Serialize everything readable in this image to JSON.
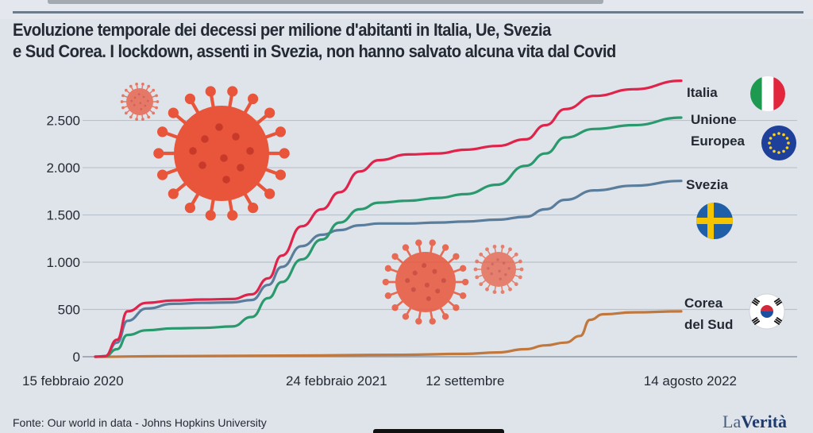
{
  "title_line1": "Evoluzione temporale dei decessi per milione d'abitanti in Italia, Ue, Svezia",
  "title_line2": "e Sud Corea. I lockdown, assenti in Svezia,  non hanno salvato alcuna vita dal Covid",
  "source": "Fonte: Our world in data - Johns Hopkins University",
  "brand": {
    "la": "La",
    "verita": "Verità"
  },
  "icons": [
    "coronavirus-icon",
    "flag-italy-icon",
    "flag-eu-icon",
    "flag-sweden-icon",
    "flag-south-korea-icon"
  ],
  "colors": {
    "italia": "#e0234a",
    "ue": "#2a9a6e",
    "svezia": "#5b7d9c",
    "corea": "#c0783c",
    "virus": "#e8553a",
    "grid": "#b9c1cb"
  },
  "chart_data": {
    "type": "line",
    "title": "Evoluzione temporale dei decessi per milione d'abitanti in Italia, Ue, Svezia e Sud Corea. I lockdown, assenti in Svezia,  non hanno salvato alcuna vita dal Covid",
    "xlabel": "",
    "ylabel": "",
    "ylim": [
      0,
      2900
    ],
    "xlim": [
      "2020-02-15",
      "2022-08-14"
    ],
    "grid": true,
    "legend": "right, at line ends",
    "y_ticks": [
      {
        "value": 0,
        "label": "0"
      },
      {
        "value": 500,
        "label": "500"
      },
      {
        "value": 1000,
        "label": "1.000"
      },
      {
        "value": 1500,
        "label": "1.500"
      },
      {
        "value": 2000,
        "label": "2.000"
      },
      {
        "value": 2500,
        "label": "2.500"
      }
    ],
    "x_ticks": [
      {
        "date": "2020-02-15",
        "label": "15 febbraio  2020"
      },
      {
        "date": "2021-02-24",
        "label": "24 febbraio 2021"
      },
      {
        "date": "2021-09-12",
        "label": "12 settembre"
      },
      {
        "date": "2022-08-14",
        "label": "14 agosto 2022"
      }
    ],
    "series": [
      {
        "name": "Italia",
        "points": [
          [
            "2020-02-15",
            0
          ],
          [
            "2020-03-01",
            5
          ],
          [
            "2020-03-20",
            180
          ],
          [
            "2020-04-05",
            480
          ],
          [
            "2020-05-05",
            570
          ],
          [
            "2020-06-15",
            595
          ],
          [
            "2020-08-01",
            605
          ],
          [
            "2020-09-15",
            610
          ],
          [
            "2020-10-15",
            660
          ],
          [
            "2020-11-10",
            830
          ],
          [
            "2020-12-01",
            1070
          ],
          [
            "2021-01-01",
            1380
          ],
          [
            "2021-02-01",
            1560
          ],
          [
            "2021-03-01",
            1740
          ],
          [
            "2021-04-01",
            1960
          ],
          [
            "2021-05-01",
            2080
          ],
          [
            "2021-06-15",
            2140
          ],
          [
            "2021-08-01",
            2150
          ],
          [
            "2021-09-12",
            2190
          ],
          [
            "2021-11-01",
            2230
          ],
          [
            "2021-12-15",
            2300
          ],
          [
            "2022-01-15",
            2450
          ],
          [
            "2022-02-15",
            2620
          ],
          [
            "2022-04-01",
            2760
          ],
          [
            "2022-06-01",
            2830
          ],
          [
            "2022-08-14",
            2920
          ]
        ]
      },
      {
        "name": "Unione Europea",
        "points": [
          [
            "2020-02-15",
            0
          ],
          [
            "2020-03-01",
            5
          ],
          [
            "2020-03-20",
            80
          ],
          [
            "2020-04-05",
            230
          ],
          [
            "2020-05-05",
            280
          ],
          [
            "2020-06-15",
            300
          ],
          [
            "2020-08-01",
            305
          ],
          [
            "2020-09-15",
            320
          ],
          [
            "2020-10-15",
            420
          ],
          [
            "2020-11-10",
            620
          ],
          [
            "2020-12-01",
            790
          ],
          [
            "2021-01-01",
            1030
          ],
          [
            "2021-02-01",
            1240
          ],
          [
            "2021-03-01",
            1420
          ],
          [
            "2021-04-01",
            1560
          ],
          [
            "2021-05-01",
            1630
          ],
          [
            "2021-06-15",
            1650
          ],
          [
            "2021-08-01",
            1680
          ],
          [
            "2021-09-12",
            1720
          ],
          [
            "2021-11-01",
            1820
          ],
          [
            "2021-12-15",
            2020
          ],
          [
            "2022-01-15",
            2150
          ],
          [
            "2022-02-15",
            2320
          ],
          [
            "2022-04-01",
            2410
          ],
          [
            "2022-06-01",
            2450
          ],
          [
            "2022-08-14",
            2530
          ]
        ]
      },
      {
        "name": "Svezia",
        "points": [
          [
            "2020-02-15",
            0
          ],
          [
            "2020-03-01",
            5
          ],
          [
            "2020-03-20",
            150
          ],
          [
            "2020-04-05",
            380
          ],
          [
            "2020-05-05",
            510
          ],
          [
            "2020-06-15",
            560
          ],
          [
            "2020-08-01",
            570
          ],
          [
            "2020-09-15",
            575
          ],
          [
            "2020-10-15",
            600
          ],
          [
            "2020-11-10",
            760
          ],
          [
            "2020-12-01",
            950
          ],
          [
            "2021-01-01",
            1170
          ],
          [
            "2021-02-01",
            1290
          ],
          [
            "2021-03-01",
            1340
          ],
          [
            "2021-04-01",
            1390
          ],
          [
            "2021-05-01",
            1410
          ],
          [
            "2021-06-15",
            1410
          ],
          [
            "2021-08-01",
            1420
          ],
          [
            "2021-09-12",
            1430
          ],
          [
            "2021-11-01",
            1450
          ],
          [
            "2021-12-15",
            1480
          ],
          [
            "2022-01-15",
            1560
          ],
          [
            "2022-02-15",
            1660
          ],
          [
            "2022-04-01",
            1760
          ],
          [
            "2022-06-01",
            1810
          ],
          [
            "2022-08-14",
            1860
          ]
        ]
      },
      {
        "name": "Corea del Sud",
        "points": [
          [
            "2020-02-15",
            0
          ],
          [
            "2020-06-01",
            5
          ],
          [
            "2020-12-01",
            12
          ],
          [
            "2021-06-01",
            20
          ],
          [
            "2021-09-12",
            30
          ],
          [
            "2021-11-01",
            45
          ],
          [
            "2021-12-15",
            80
          ],
          [
            "2022-01-15",
            120
          ],
          [
            "2022-02-15",
            150
          ],
          [
            "2022-03-10",
            220
          ],
          [
            "2022-03-25",
            390
          ],
          [
            "2022-04-15",
            450
          ],
          [
            "2022-06-01",
            470
          ],
          [
            "2022-08-14",
            480
          ]
        ]
      }
    ],
    "series_labels": [
      {
        "name": "Italia",
        "lines": [
          "Italia"
        ]
      },
      {
        "name": "Unione Europea",
        "lines": [
          "Unione",
          "Europea"
        ]
      },
      {
        "name": "Svezia",
        "lines": [
          "Svezia"
        ]
      },
      {
        "name": "Corea del Sud",
        "lines": [
          "Corea",
          "del Sud"
        ]
      }
    ]
  }
}
